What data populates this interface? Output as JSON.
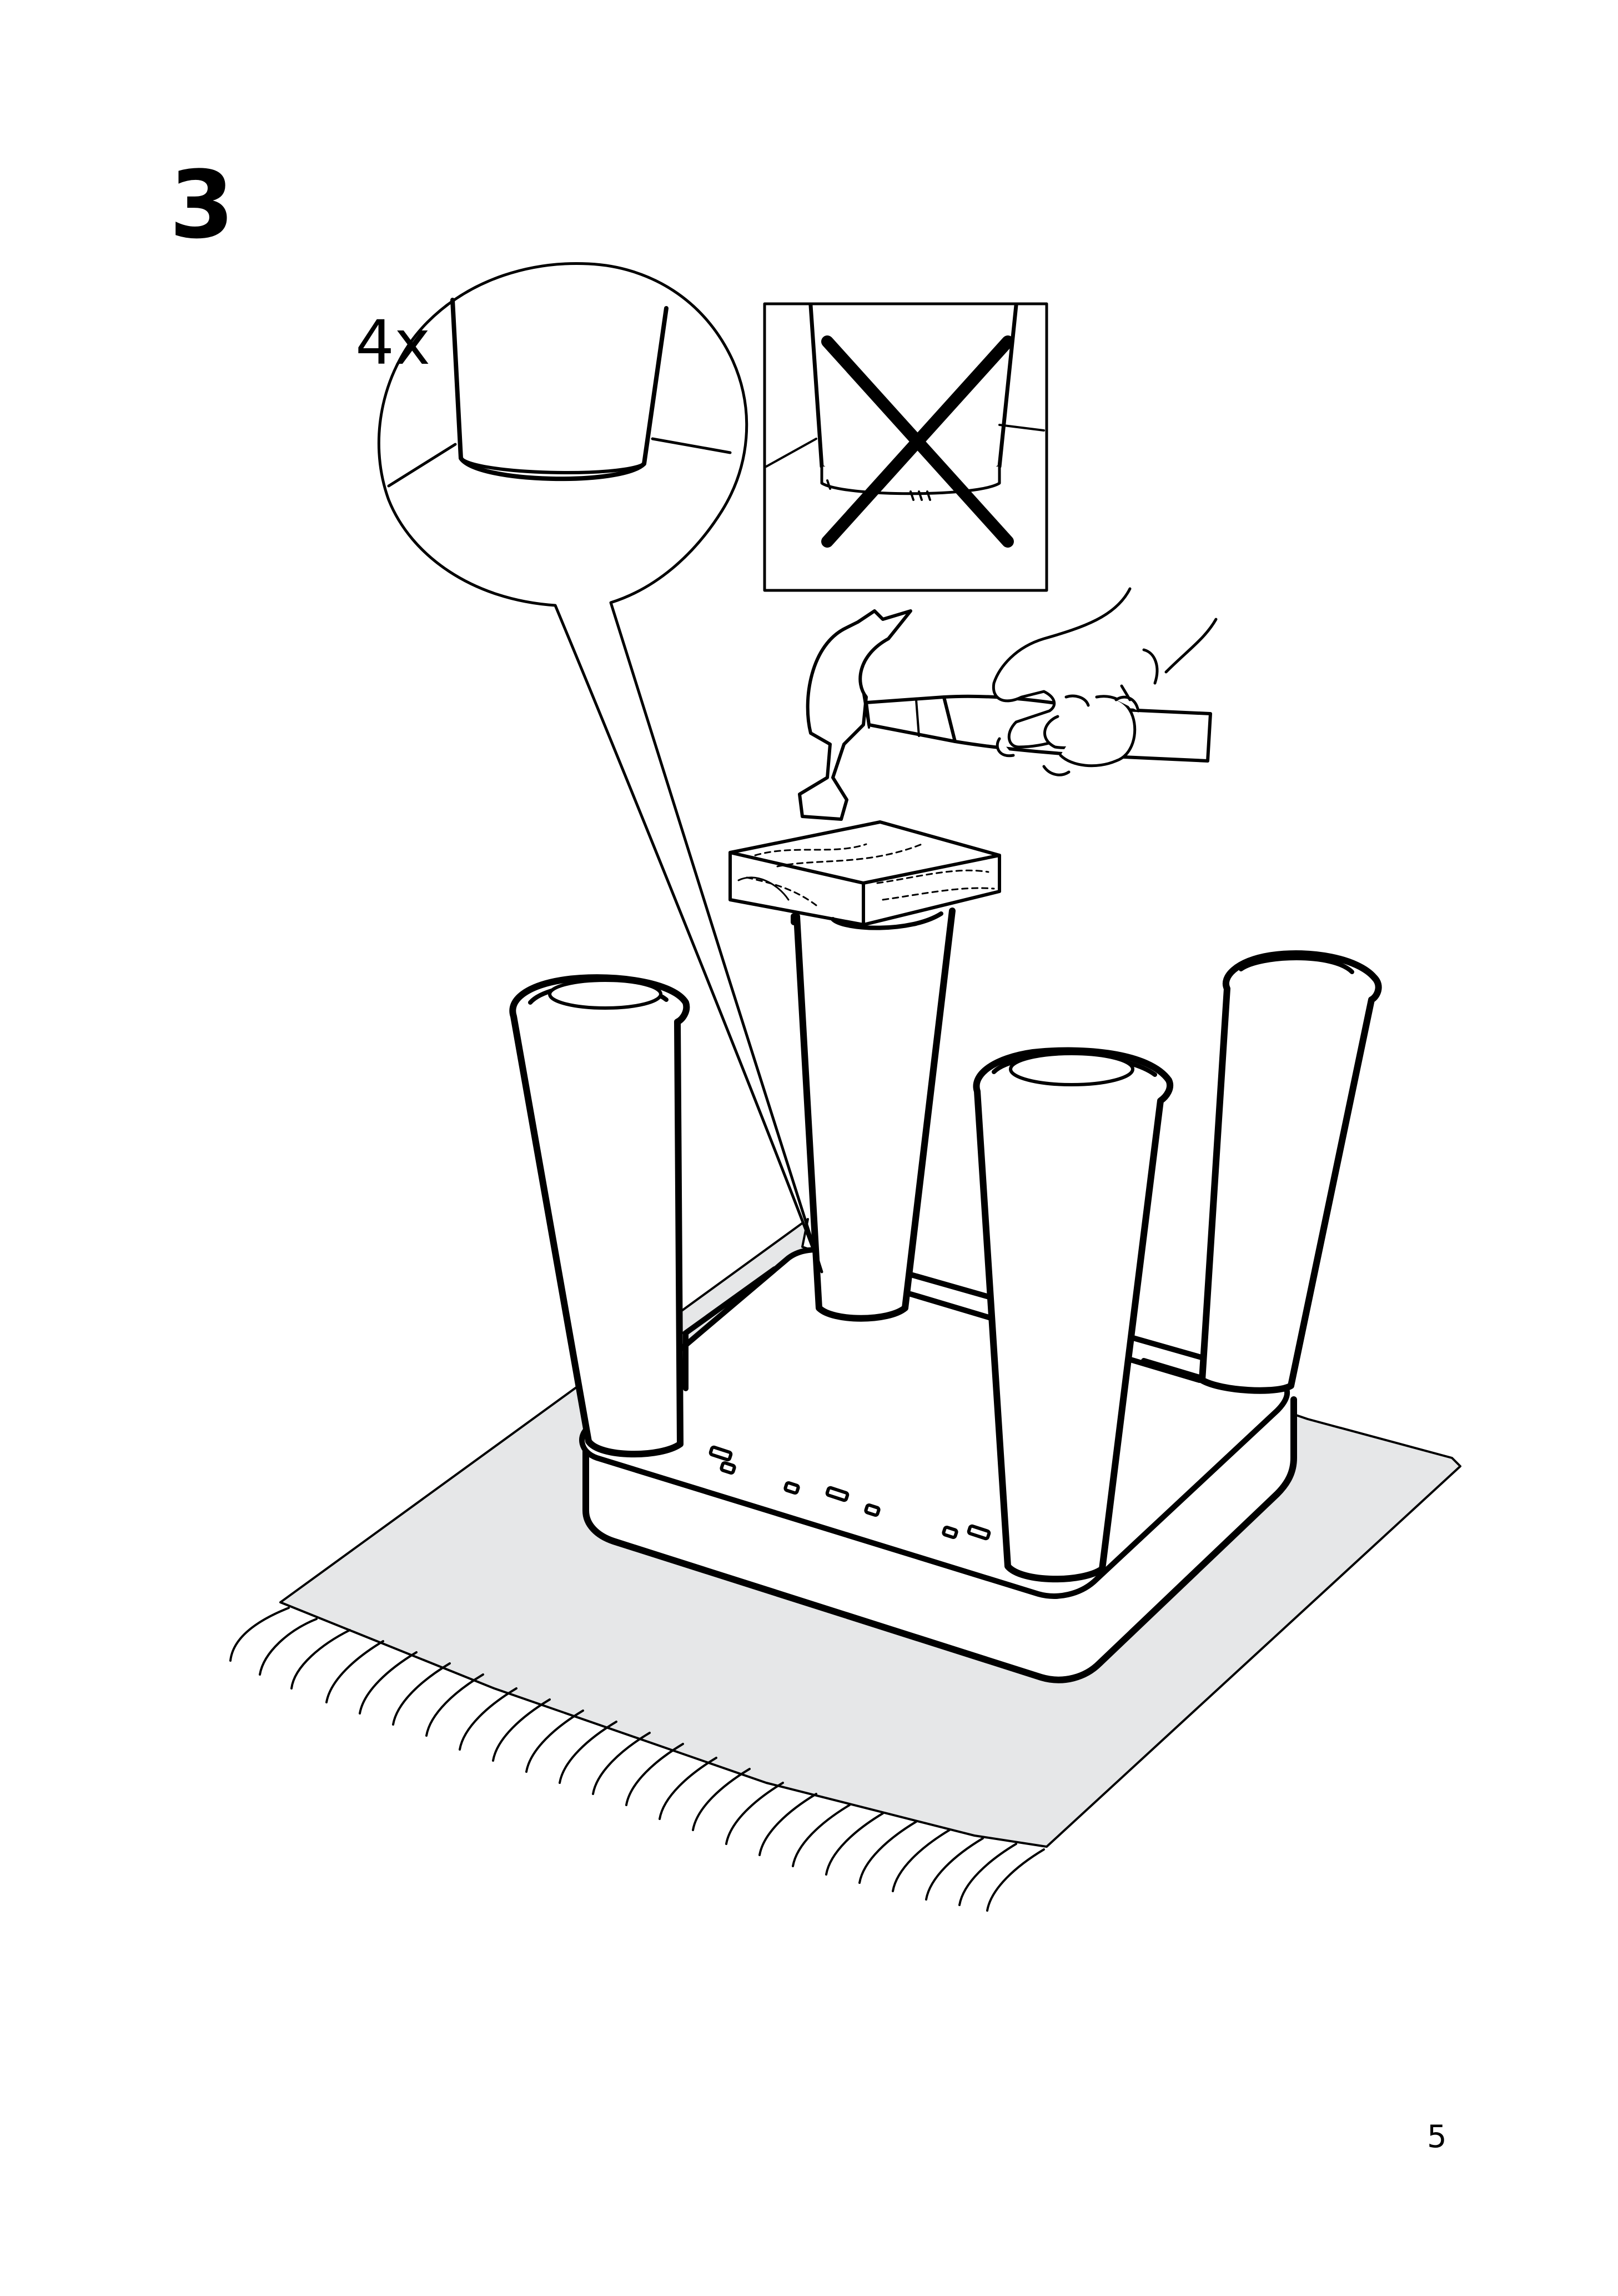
{
  "step": {
    "number": "3"
  },
  "detail": {
    "quantity": "4x"
  },
  "page": {
    "number": "5"
  },
  "colors": {
    "ink": "#000000",
    "paper": "#ffffff",
    "rug": "#e6e7e8"
  },
  "icons": [
    "magnifier-detail-icon",
    "wrong-way-cross-icon",
    "hammer-icon",
    "hand-icon",
    "wood-block-icon"
  ]
}
